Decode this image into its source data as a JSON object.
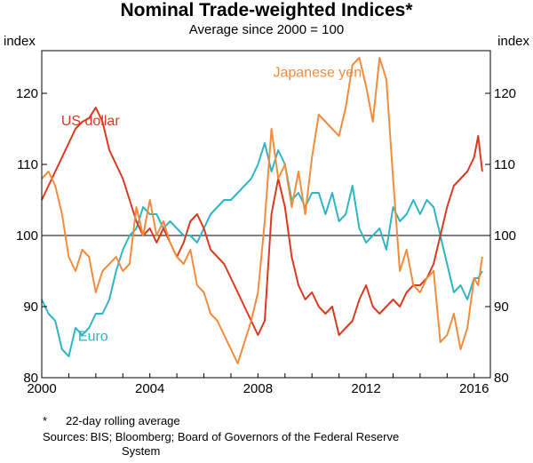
{
  "chart_data": {
    "type": "line",
    "title": "Nominal Trade-weighted Indices*",
    "subtitle": "Average since 2000 = 100",
    "ylabel_left": "index",
    "ylabel_right": "index",
    "ylim": [
      80,
      126
    ],
    "yticks": [
      80,
      90,
      100,
      110,
      120
    ],
    "xlim": [
      2000,
      2016.6
    ],
    "xticks": [
      2000,
      2004,
      2008,
      2012,
      2016
    ],
    "reference_line": 100,
    "series": [
      {
        "name": "US dollar",
        "color": "#d93a1f",
        "label_pos": [
          2001.8,
          115.5
        ],
        "x": [
          2000.0,
          2000.25,
          2000.5,
          2000.75,
          2001.0,
          2001.25,
          2001.5,
          2001.75,
          2002.0,
          2002.25,
          2002.5,
          2002.75,
          2003.0,
          2003.25,
          2003.5,
          2003.75,
          2004.0,
          2004.25,
          2004.5,
          2004.75,
          2005.0,
          2005.25,
          2005.5,
          2005.75,
          2006.0,
          2006.25,
          2006.5,
          2006.75,
          2007.0,
          2007.25,
          2007.5,
          2007.75,
          2008.0,
          2008.25,
          2008.5,
          2008.75,
          2009.0,
          2009.25,
          2009.5,
          2009.75,
          2010.0,
          2010.25,
          2010.5,
          2010.75,
          2011.0,
          2011.25,
          2011.5,
          2011.75,
          2012.0,
          2012.25,
          2012.5,
          2012.75,
          2013.0,
          2013.25,
          2013.5,
          2013.75,
          2014.0,
          2014.25,
          2014.5,
          2014.75,
          2015.0,
          2015.25,
          2015.5,
          2015.75,
          2016.0,
          2016.15,
          2016.3
        ],
        "values": [
          105,
          107,
          109,
          111,
          113,
          115,
          116,
          116.5,
          118,
          116,
          112,
          110,
          108,
          105,
          102,
          100,
          101,
          99,
          101,
          99,
          97,
          99,
          102,
          103,
          101,
          98,
          97,
          96,
          94,
          92,
          90,
          88,
          86,
          88,
          103,
          108,
          104,
          97,
          93,
          91,
          92,
          90,
          89,
          90,
          86,
          87,
          88,
          91,
          93,
          90,
          89,
          90,
          91,
          90,
          92,
          93,
          93,
          94,
          96,
          100,
          104,
          107,
          108,
          109,
          111,
          114,
          109
        ]
      },
      {
        "name": "Japanese yen",
        "color": "#f28c3c",
        "label_pos": [
          2010.2,
          122.3
        ],
        "x": [
          2000.0,
          2000.25,
          2000.5,
          2000.75,
          2001.0,
          2001.25,
          2001.5,
          2001.75,
          2002.0,
          2002.25,
          2002.5,
          2002.75,
          2003.0,
          2003.25,
          2003.5,
          2003.75,
          2004.0,
          2004.25,
          2004.5,
          2004.75,
          2005.0,
          2005.25,
          2005.5,
          2005.75,
          2006.0,
          2006.25,
          2006.5,
          2006.75,
          2007.0,
          2007.25,
          2007.5,
          2007.75,
          2008.0,
          2008.25,
          2008.5,
          2008.75,
          2009.0,
          2009.25,
          2009.5,
          2009.75,
          2010.0,
          2010.25,
          2010.5,
          2010.75,
          2011.0,
          2011.25,
          2011.5,
          2011.75,
          2012.0,
          2012.25,
          2012.5,
          2012.75,
          2013.0,
          2013.25,
          2013.5,
          2013.75,
          2014.0,
          2014.25,
          2014.5,
          2014.75,
          2015.0,
          2015.25,
          2015.5,
          2015.75,
          2016.0,
          2016.15,
          2016.3
        ],
        "values": [
          108,
          109,
          107,
          103,
          97,
          95,
          98,
          97,
          92,
          95,
          96,
          97,
          95,
          96,
          104,
          100,
          105,
          100,
          102,
          99,
          97,
          96,
          98,
          93,
          92,
          89,
          88,
          86,
          84,
          82,
          85,
          88,
          92,
          102,
          115,
          108,
          110,
          104,
          109,
          103,
          111,
          117,
          116,
          115,
          114,
          118,
          124,
          125,
          121,
          116,
          125,
          122,
          108,
          95,
          98,
          93,
          92,
          94,
          95,
          85,
          86,
          89,
          84,
          87,
          94,
          93,
          97
        ]
      },
      {
        "name": "Euro",
        "color": "#2eb5c6",
        "label_pos": [
          2001.9,
          85.2
        ],
        "x": [
          2000.0,
          2000.25,
          2000.5,
          2000.75,
          2001.0,
          2001.25,
          2001.5,
          2001.75,
          2002.0,
          2002.25,
          2002.5,
          2002.75,
          2003.0,
          2003.25,
          2003.5,
          2003.75,
          2004.0,
          2004.25,
          2004.5,
          2004.75,
          2005.0,
          2005.25,
          2005.5,
          2005.75,
          2006.0,
          2006.25,
          2006.5,
          2006.75,
          2007.0,
          2007.25,
          2007.5,
          2007.75,
          2008.0,
          2008.25,
          2008.5,
          2008.75,
          2009.0,
          2009.25,
          2009.5,
          2009.75,
          2010.0,
          2010.25,
          2010.5,
          2010.75,
          2011.0,
          2011.25,
          2011.5,
          2011.75,
          2012.0,
          2012.25,
          2012.5,
          2012.75,
          2013.0,
          2013.25,
          2013.5,
          2013.75,
          2014.0,
          2014.25,
          2014.5,
          2014.75,
          2015.0,
          2015.25,
          2015.5,
          2015.75,
          2016.0,
          2016.15,
          2016.3
        ],
        "values": [
          91,
          89,
          88,
          84,
          83,
          87,
          86,
          87,
          89,
          89,
          91,
          95,
          98,
          100,
          101,
          104,
          103,
          103,
          101,
          102,
          101,
          100,
          100,
          99,
          101,
          103,
          104,
          105,
          105,
          106,
          107,
          108,
          110,
          113,
          109,
          112,
          110,
          105,
          106,
          104,
          106,
          106,
          103,
          106,
          102,
          103,
          107,
          101,
          99,
          100,
          101,
          98,
          104,
          102,
          103,
          105,
          103,
          105,
          104,
          100,
          96,
          92,
          93,
          91,
          94,
          94,
          95
        ]
      }
    ]
  },
  "notes": {
    "footnote_mark": "*",
    "footnote_text": "22-day rolling average",
    "sources_label": "Sources:",
    "sources_line1": "BIS; Bloomberg; Board of Governors of the Federal Reserve",
    "sources_line2": "System"
  }
}
